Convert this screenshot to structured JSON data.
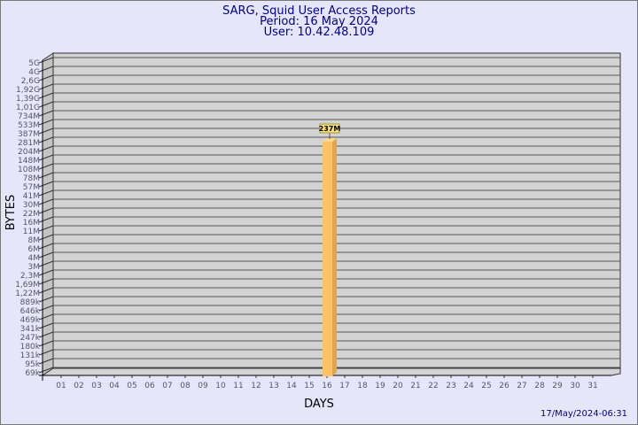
{
  "chart_data": {
    "type": "bar",
    "title": "SARG, Squid User Access Reports",
    "subtitle_lines": [
      "Period: 16 May 2024",
      "User: 10.42.48.109"
    ],
    "xlabel": "DAYS",
    "ylabel": "BYTES",
    "y_scale": "log",
    "y_tick_labels": [
      "5G",
      "4G",
      "2,6G",
      "1,92G",
      "1,39G",
      "1,01G",
      "734M",
      "533M",
      "387M",
      "281M",
      "204M",
      "148M",
      "108M",
      "78M",
      "57M",
      "41M",
      "30M",
      "22M",
      "16M",
      "11M",
      "8M",
      "6M",
      "4M",
      "3M",
      "2,3M",
      "1,69M",
      "1,22M",
      "889k",
      "646k",
      "469k",
      "341k",
      "247k",
      "180k",
      "131k",
      "95k",
      "69k"
    ],
    "categories": [
      "01",
      "02",
      "03",
      "04",
      "05",
      "06",
      "07",
      "08",
      "09",
      "10",
      "11",
      "12",
      "13",
      "14",
      "15",
      "16",
      "17",
      "18",
      "19",
      "20",
      "21",
      "22",
      "23",
      "24",
      "25",
      "26",
      "27",
      "28",
      "29",
      "30",
      "31"
    ],
    "bars": [
      {
        "category": "16",
        "value_label": "237M"
      }
    ],
    "grid": true,
    "colors": {
      "background": "#e6e6fa",
      "plot": "#d3d3d3",
      "bar_front": "#fbc266",
      "bar_side": "#e0a64a",
      "bar_top": "#ffd98a",
      "text": "#00008b",
      "tick_text": "#555566",
      "label_box": "#f5e07a"
    }
  },
  "footer": {
    "timestamp": "17/May/2024-06:31"
  }
}
